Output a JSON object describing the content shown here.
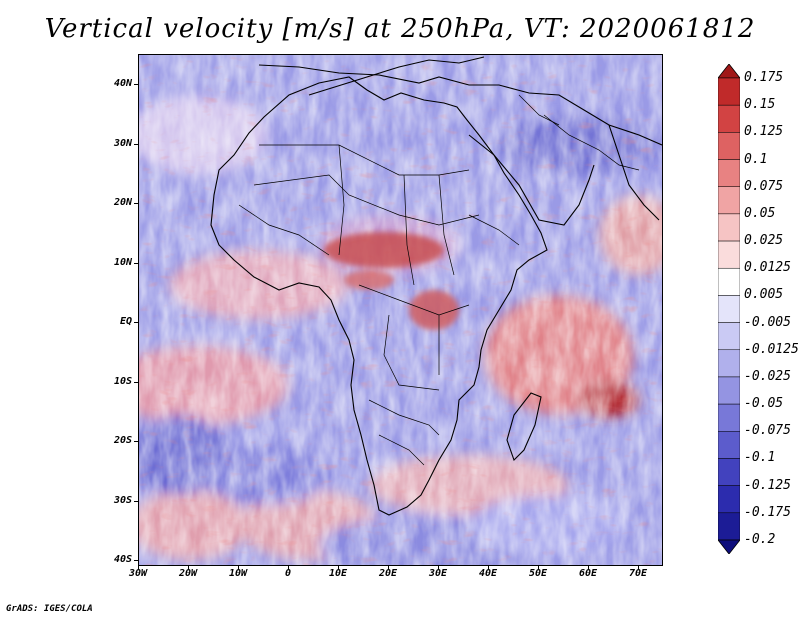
{
  "title": "Vertical velocity [m/s] at 250hPa, VT: 2020061812",
  "credit": "GrADS: IGES/COLA",
  "lat_labels": [
    "40N",
    "30N",
    "20N",
    "10N",
    "EQ",
    "10S",
    "20S",
    "30S",
    "40S"
  ],
  "lon_labels": [
    "30W",
    "20W",
    "10W",
    "0",
    "10E",
    "20E",
    "30E",
    "40E",
    "50E",
    "60E",
    "70E"
  ],
  "colorbar": {
    "labels": [
      "0.175",
      "0.15",
      "0.125",
      "0.1",
      "0.075",
      "0.05",
      "0.025",
      "0.0125",
      "0.005",
      "-0.005",
      "-0.0125",
      "-0.025",
      "-0.05",
      "-0.075",
      "-0.1",
      "-0.125",
      "-0.175",
      "-0.2"
    ],
    "colors": [
      "#a01818",
      "#c02a2a",
      "#d24343",
      "#de6262",
      "#e88282",
      "#f0a4a4",
      "#f6c4c4",
      "#fadcdc",
      "#ffffff",
      "#e4e4fa",
      "#cacaf4",
      "#b0b0ec",
      "#9494e2",
      "#7878d8",
      "#5c5ccc",
      "#4242be",
      "#2c2cae",
      "#1c1c96",
      "#0e0e7c"
    ]
  },
  "chart_data": {
    "type": "heatmap",
    "title": "Vertical velocity [m/s] at 250hPa, VT: 2020061812",
    "variable": "Vertical velocity",
    "units": "m/s",
    "level": "250hPa",
    "valid_time": "2020061812",
    "lon_range": [
      -30,
      75
    ],
    "lat_range": [
      -40,
      45
    ],
    "x_ticks": [
      "30W",
      "20W",
      "10W",
      "0",
      "10E",
      "20E",
      "30E",
      "40E",
      "50E",
      "60E",
      "70E"
    ],
    "y_ticks": [
      "40N",
      "30N",
      "20N",
      "10N",
      "EQ",
      "10S",
      "20S",
      "30S",
      "40S"
    ],
    "levels": [
      -0.2,
      -0.175,
      -0.125,
      -0.1,
      -0.075,
      -0.05,
      -0.025,
      -0.0125,
      -0.005,
      0.005,
      0.0125,
      0.025,
      0.05,
      0.075,
      0.1,
      0.125,
      0.15,
      0.175
    ]
  }
}
